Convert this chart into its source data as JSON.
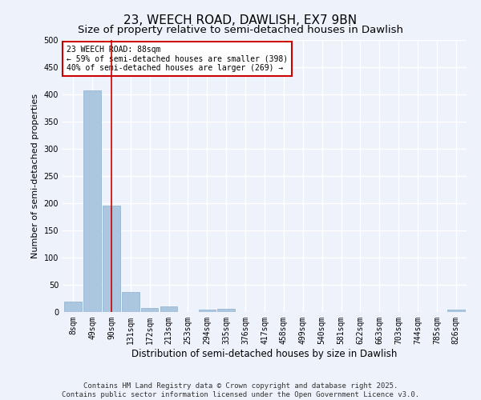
{
  "title1": "23, WEECH ROAD, DAWLISH, EX7 9BN",
  "title2": "Size of property relative to semi-detached houses in Dawlish",
  "xlabel": "Distribution of semi-detached houses by size in Dawlish",
  "ylabel": "Number of semi-detached properties",
  "categories": [
    "8sqm",
    "49sqm",
    "90sqm",
    "131sqm",
    "172sqm",
    "213sqm",
    "253sqm",
    "294sqm",
    "335sqm",
    "376sqm",
    "417sqm",
    "458sqm",
    "499sqm",
    "540sqm",
    "581sqm",
    "622sqm",
    "663sqm",
    "703sqm",
    "744sqm",
    "785sqm",
    "826sqm"
  ],
  "values": [
    19,
    408,
    195,
    37,
    8,
    10,
    0,
    5,
    6,
    0,
    0,
    0,
    0,
    0,
    0,
    0,
    0,
    0,
    0,
    0,
    5
  ],
  "bar_color": "#adc6e0",
  "bar_edge_color": "#8ab0d0",
  "vline_color": "#cc0000",
  "vline_index": 2,
  "annotation_line1": "23 WEECH ROAD: 88sqm",
  "annotation_line2": "← 59% of semi-detached houses are smaller (398)",
  "annotation_line3": "40% of semi-detached houses are larger (269) →",
  "annotation_box_color": "#ffffff",
  "annotation_box_edge": "#cc0000",
  "ylim": [
    0,
    500
  ],
  "yticks": [
    0,
    50,
    100,
    150,
    200,
    250,
    300,
    350,
    400,
    450,
    500
  ],
  "footer1": "Contains HM Land Registry data © Crown copyright and database right 2025.",
  "footer2": "Contains public sector information licensed under the Open Government Licence v3.0.",
  "bg_color": "#eef2fb",
  "grid_color": "#ffffff",
  "title_fontsize": 11,
  "subtitle_fontsize": 9.5,
  "ylabel_fontsize": 8,
  "xlabel_fontsize": 8.5,
  "tick_fontsize": 7,
  "annotation_fontsize": 7,
  "footer_fontsize": 6.5
}
